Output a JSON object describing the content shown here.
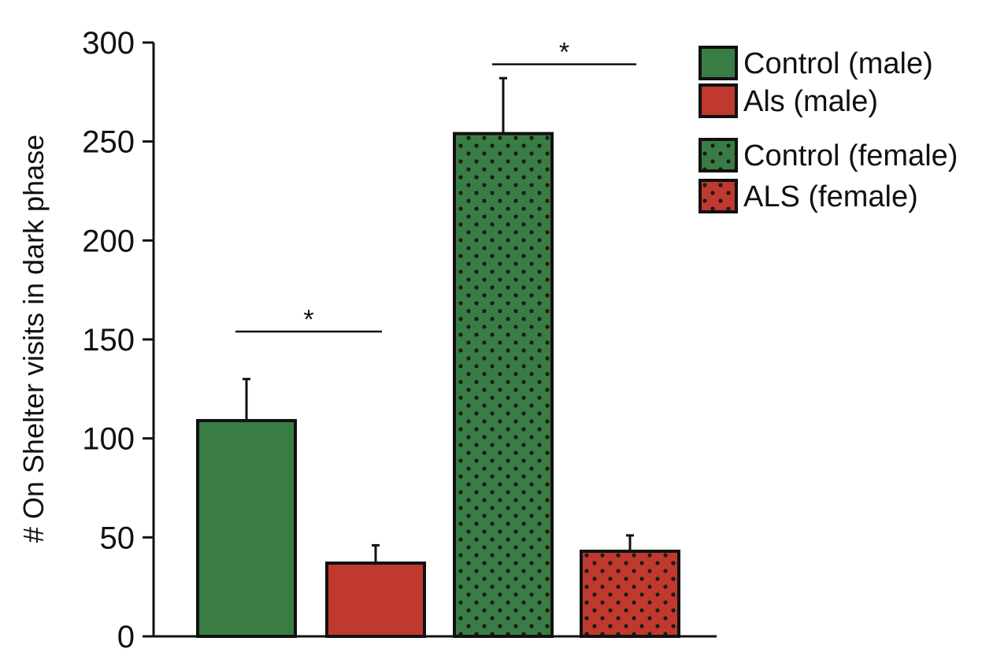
{
  "chart_data": {
    "type": "bar",
    "title": "",
    "xlabel": "",
    "ylabel": "# On Shelter visits in dark phase",
    "ylim": [
      0,
      300
    ],
    "yticks": [
      0,
      50,
      100,
      150,
      200,
      250,
      300
    ],
    "grid": false,
    "legend_position": "top-right",
    "series": [
      {
        "name": "Control (male)",
        "value": 109,
        "error": 21,
        "color": "#3a7d44",
        "pattern": "solid"
      },
      {
        "name": "Als (male)",
        "value": 37,
        "error": 9,
        "color": "#c0392f",
        "pattern": "solid"
      },
      {
        "name": "Control (female)",
        "value": 254,
        "error": 28,
        "color": "#3a7d44",
        "pattern": "dots"
      },
      {
        "name": "ALS (female)",
        "value": 43,
        "error": 8,
        "color": "#c0392f",
        "pattern": "dots"
      }
    ],
    "annotations": [
      {
        "text": "*",
        "from_bar": 0,
        "to_bar": 1,
        "y": 154
      },
      {
        "text": "*",
        "from_bar": 2,
        "to_bar": 3,
        "y": 289
      }
    ]
  }
}
